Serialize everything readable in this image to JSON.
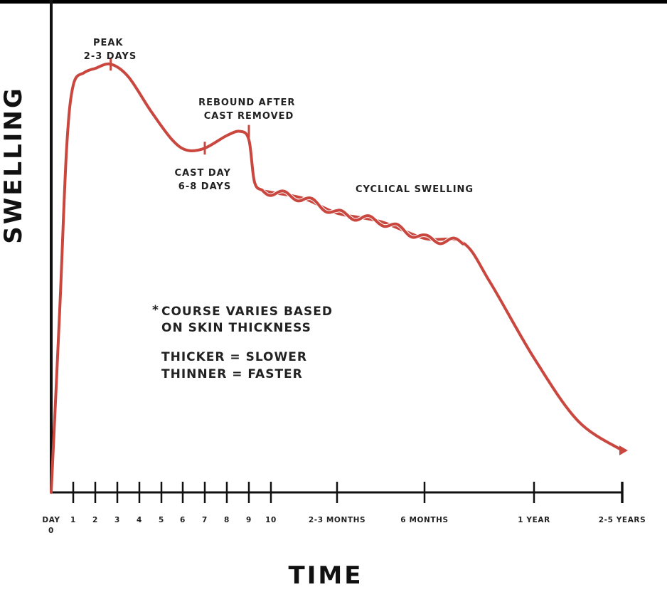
{
  "chart_data": {
    "type": "line",
    "xlabel": "TIME",
    "ylabel": "SWELLING",
    "x_ticks": [
      "DAY\n0",
      "1",
      "2",
      "3",
      "4",
      "5",
      "6",
      "7",
      "8",
      "9",
      "10",
      "2-3 MONTHS",
      "6 MONTHS",
      "1 YEAR",
      "2-5 YEARS"
    ],
    "series": [
      {
        "color": "#c9473f",
        "comment_units": "x = tick index (0..14), y = relative swelling 0..1",
        "points": [
          [
            0,
            0.0
          ],
          [
            0.4,
            0.45
          ],
          [
            0.7,
            0.82
          ],
          [
            1,
            0.97
          ],
          [
            1.5,
            1.0
          ],
          [
            2,
            1.01
          ],
          [
            2.7,
            1.02
          ],
          [
            3.5,
            0.99
          ],
          [
            4.5,
            0.91
          ],
          [
            5.5,
            0.84
          ],
          [
            6.2,
            0.815
          ],
          [
            7,
            0.82
          ],
          [
            8,
            0.85
          ],
          [
            8.6,
            0.86
          ],
          [
            9,
            0.84
          ],
          [
            9.25,
            0.74
          ],
          [
            9.6,
            0.72
          ],
          [
            10,
            0.715
          ],
          [
            10.5,
            0.7
          ],
          [
            11,
            0.665
          ],
          [
            11.5,
            0.645
          ],
          [
            12,
            0.605
          ],
          [
            12.35,
            0.595
          ],
          [
            12.6,
            0.5
          ],
          [
            13,
            0.32
          ],
          [
            13.5,
            0.17
          ],
          [
            14,
            0.1
          ]
        ]
      }
    ],
    "annotations": [
      {
        "id": "peak",
        "lines": [
          "PEAK",
          "2-3 DAYS"
        ]
      },
      {
        "id": "rebound",
        "lines": [
          "REBOUND AFTER",
          "CAST REMOVED"
        ]
      },
      {
        "id": "cast",
        "lines": [
          "CAST DAY",
          "6-8 DAYS"
        ]
      },
      {
        "id": "cyclical",
        "lines": [
          "CYCLICAL SWELLING"
        ]
      }
    ],
    "note": {
      "star": "*",
      "lines": [
        "COURSE VARIES BASED",
        "ON SKIN THICKNESS"
      ],
      "lines2": [
        "THICKER = SLOWER",
        "THINNER = FASTER"
      ]
    },
    "colors": {
      "curve": "#c9473f",
      "axis": "#111111"
    }
  }
}
